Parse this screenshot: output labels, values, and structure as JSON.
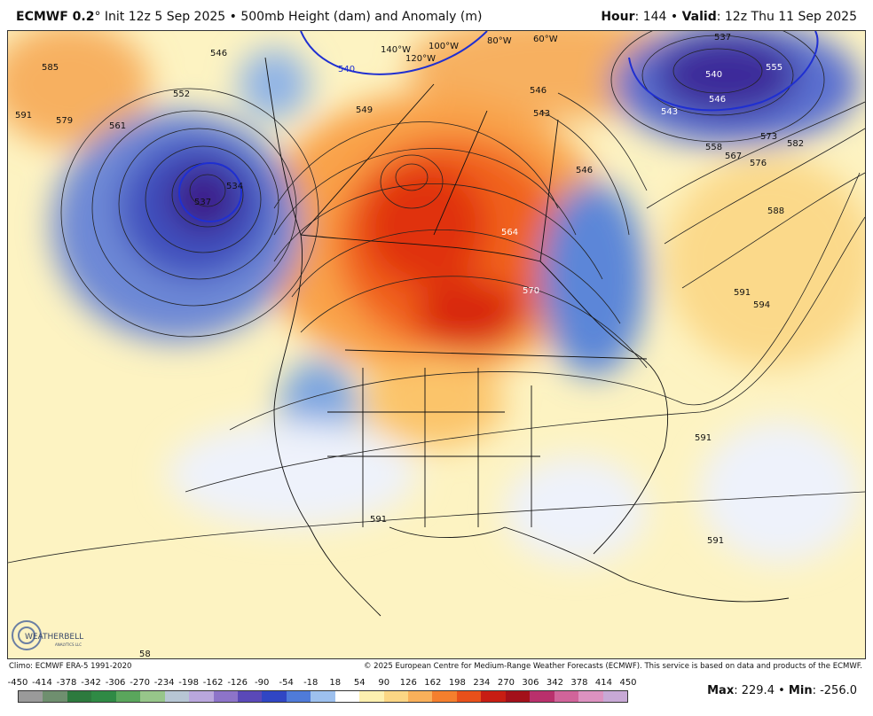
{
  "header": {
    "model": "ECMWF 0.2",
    "deg": "°",
    "init": "Init 12z 5 Sep 2025",
    "bullet": "•",
    "product": "500mb Height (dam) and Anomaly (m)",
    "hour_label": "Hour",
    "hour_value": ": 144",
    "valid_label": "Valid",
    "valid_value": ": 12z Thu 11 Sep 2025"
  },
  "map": {
    "contour_labels": [
      "585",
      "591",
      "579",
      "561",
      "552",
      "546",
      "537",
      "534",
      "540",
      "549",
      "543",
      "546",
      "537",
      "540",
      "555",
      "546",
      "543",
      "558",
      "567",
      "573",
      "576",
      "582",
      "588",
      "546",
      "564",
      "570",
      "591",
      "594",
      "591",
      "591",
      "591",
      "120°W",
      "140°W",
      "100°W",
      "80°W",
      "60°W",
      "58"
    ],
    "colors": {
      "strong_positive": "#e63b0f",
      "positive": "#f58c2c",
      "weak_positive": "#fbd98a",
      "neutral": "#fdf3c2",
      "near_zero": "#eef2fb",
      "weak_negative": "#8fb3e6",
      "negative": "#3355cc",
      "strong_negative": "#3d1d8a"
    }
  },
  "logo": {
    "text": "WEATHERBELL",
    "sub": "ANALYTICS LLC"
  },
  "credits": {
    "climo": "Climo: ECMWF ERA-5 1991-2020",
    "copyright": "© 2025 European Centre for Medium-Range Weather Forecasts (ECMWF). This service is based on data and products of the ECMWF."
  },
  "colorbar": {
    "ticks": [
      "-450",
      "-414",
      "-378",
      "-342",
      "-306",
      "-270",
      "-234",
      "-198",
      "-162",
      "-126",
      "-90",
      "-54",
      "-18",
      "18",
      "54",
      "90",
      "126",
      "162",
      "198",
      "234",
      "270",
      "306",
      "342",
      "378",
      "414",
      "450"
    ],
    "colors": [
      "#9a9a9a",
      "#6f8f6f",
      "#2d7a3e",
      "#2f8a45",
      "#5aa65c",
      "#97c68a",
      "#b7c6d4",
      "#b9a7dd",
      "#8d74c9",
      "#5a49b8",
      "#3046c4",
      "#4f7bd9",
      "#9dc0ee",
      "#ffffff",
      "#fdf0b0",
      "#fbd684",
      "#f9b05a",
      "#f57f2d",
      "#e8501a",
      "#c81d13",
      "#a3101a",
      "#b9306c",
      "#d1649a",
      "#dd92c0",
      "#c8a9d6"
    ]
  },
  "stats": {
    "max_label": "Max",
    "max_value": ": 229.4",
    "min_label": "Min",
    "min_value": ": -256.0"
  }
}
